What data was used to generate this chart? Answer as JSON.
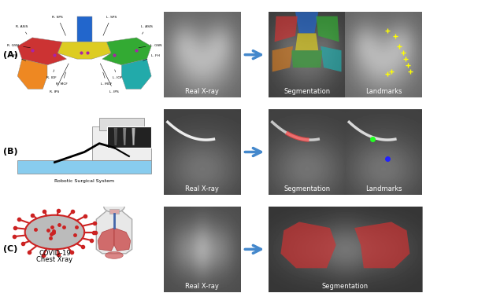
{
  "title": "",
  "figsize": [
    6.4,
    3.87
  ],
  "dpi": 100,
  "background_color": "#ffffff",
  "row_labels": [
    "(A)",
    "(B)",
    "(C)"
  ],
  "row_A_label1": "Real X-ray",
  "row_A_label2": "Segmentation",
  "row_A_label3": "Landmarks",
  "row_B_label1": "Real X-ray",
  "row_B_label2": "Segmentation",
  "row_B_label3": "Landmarks",
  "row_C_label1": "Real X-ray",
  "row_C_label2": "Segmentation",
  "left_col_B_text": "Robotic Surgical System",
  "arrow_color": "#4488cc",
  "label_fontsize": 6,
  "row_label_fontsize": 8
}
